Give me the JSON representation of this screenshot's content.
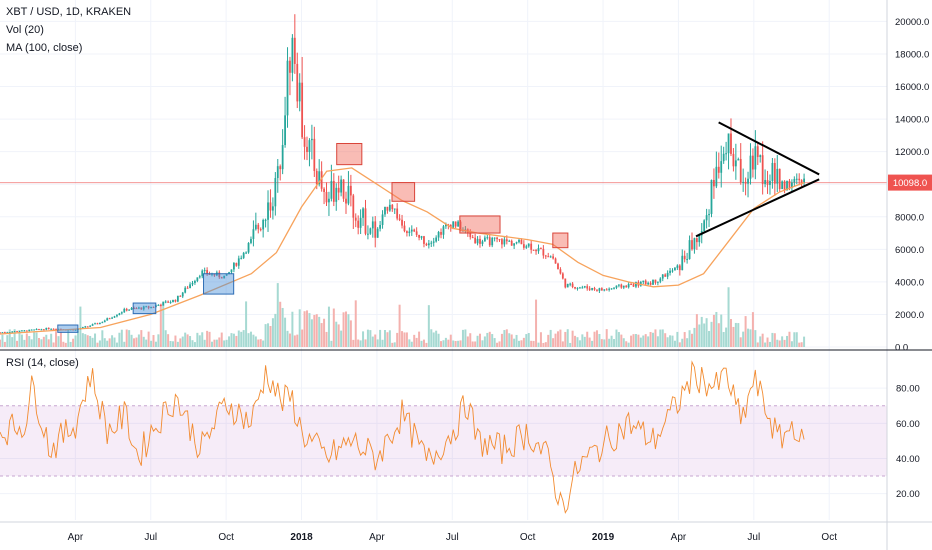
{
  "main_legend": {
    "symbol_line": "XBT / USD, 1D, KRAKEN",
    "volume_line": "Vol (20)",
    "ma_line": "MA (100, close)"
  },
  "rsi_legend": "RSI (14, close)",
  "current_price": {
    "label": "10098.0",
    "value": 10098,
    "color": "#ef5350"
  },
  "chart_data": [
    {
      "type": "candlestick",
      "title": "XBT / USD, 1D, KRAKEN",
      "ylim": [
        0,
        20700
      ],
      "y_ticks": [
        "0.0",
        "2000.0",
        "4000.0",
        "6000.0",
        "8000.0",
        "10000.0",
        "12000.0",
        "14000.0",
        "16000.0",
        "18000.0",
        "20000.0"
      ],
      "y_tick_values": [
        0,
        2000,
        4000,
        6000,
        8000,
        10000,
        12000,
        14000,
        16000,
        18000,
        20000
      ],
      "x_ticks": [
        {
          "label": "Apr",
          "month": 3,
          "bold": false
        },
        {
          "label": "Jul",
          "month": 6,
          "bold": false
        },
        {
          "label": "Oct",
          "month": 9,
          "bold": false
        },
        {
          "label": "2018",
          "month": 12,
          "bold": true
        },
        {
          "label": "Apr",
          "month": 15,
          "bold": false
        },
        {
          "label": "Jul",
          "month": 18,
          "bold": false
        },
        {
          "label": "Oct",
          "month": 21,
          "bold": false
        },
        {
          "label": "2019",
          "month": 24,
          "bold": true
        },
        {
          "label": "Apr",
          "month": 27,
          "bold": false
        },
        {
          "label": "Jul",
          "month": 30,
          "bold": false
        },
        {
          "label": "Oct",
          "month": 33,
          "bold": false
        }
      ],
      "x_range_months": [
        0,
        35.3
      ],
      "price_path": [
        [
          0,
          900
        ],
        [
          1,
          1000
        ],
        [
          2,
          1150
        ],
        [
          3,
          1050
        ],
        [
          4,
          1500
        ],
        [
          5,
          2300
        ],
        [
          6,
          2450
        ],
        [
          7,
          2900
        ],
        [
          8,
          4600
        ],
        [
          9,
          4300
        ],
        [
          10,
          6500
        ],
        [
          11,
          9800
        ],
        [
          11.6,
          19000
        ],
        [
          12,
          14000
        ],
        [
          12.5,
          11200
        ],
        [
          13,
          9000
        ],
        [
          13.5,
          10500
        ],
        [
          14,
          8500
        ],
        [
          15,
          7000
        ],
        [
          15.5,
          9000
        ],
        [
          16,
          7500
        ],
        [
          17,
          6400
        ],
        [
          18,
          7700
        ],
        [
          19,
          6500
        ],
        [
          20,
          6500
        ],
        [
          21,
          6300
        ],
        [
          22,
          5500
        ],
        [
          22.5,
          3800
        ],
        [
          23,
          3700
        ],
        [
          24,
          3500
        ],
        [
          25,
          3800
        ],
        [
          26,
          4000
        ],
        [
          27,
          4900
        ],
        [
          28,
          7500
        ],
        [
          28.8,
          12800
        ],
        [
          29.5,
          10500
        ],
        [
          30,
          11500
        ],
        [
          31,
          10000
        ],
        [
          32,
          10100
        ]
      ],
      "ma_path": [
        [
          0,
          800
        ],
        [
          4,
          1200
        ],
        [
          6,
          2000
        ],
        [
          8,
          3200
        ],
        [
          10,
          4500
        ],
        [
          11,
          5800
        ],
        [
          12,
          8600
        ],
        [
          13,
          10800
        ],
        [
          14,
          11000
        ],
        [
          15,
          10000
        ],
        [
          16,
          9000
        ],
        [
          17,
          8300
        ],
        [
          18,
          7300
        ],
        [
          19,
          7000
        ],
        [
          20,
          6800
        ],
        [
          21,
          6600
        ],
        [
          22,
          6300
        ],
        [
          23,
          5200
        ],
        [
          24,
          4400
        ],
        [
          25,
          4000
        ],
        [
          26,
          3700
        ],
        [
          27,
          3800
        ],
        [
          28,
          4500
        ],
        [
          29,
          6500
        ],
        [
          30,
          8500
        ],
        [
          31,
          9500
        ],
        [
          32,
          10100
        ]
      ],
      "boxes": [
        {
          "m0": 2.3,
          "m1": 3.1,
          "p0": 900,
          "p1": 1350,
          "color": "blue"
        },
        {
          "m0": 5.3,
          "m1": 6.2,
          "p0": 2050,
          "p1": 2700,
          "color": "blue"
        },
        {
          "m0": 8.1,
          "m1": 9.3,
          "p0": 3250,
          "p1": 4500,
          "color": "blue"
        },
        {
          "m0": 13.4,
          "m1": 14.4,
          "p0": 11200,
          "p1": 12500,
          "color": "red"
        },
        {
          "m0": 15.6,
          "m1": 16.5,
          "p0": 8950,
          "p1": 10100,
          "color": "red"
        },
        {
          "m0": 18.3,
          "m1": 19.9,
          "p0": 7000,
          "p1": 8050,
          "color": "red"
        },
        {
          "m0": 22.0,
          "m1": 22.6,
          "p0": 6100,
          "p1": 7000,
          "color": "red"
        }
      ],
      "trendlines": [
        {
          "m0": 28.6,
          "p0": 13800,
          "m1": 32.6,
          "p1": 10600
        },
        {
          "m0": 27.7,
          "p0": 6800,
          "m1": 32.6,
          "p1": 10300
        }
      ]
    },
    {
      "type": "bar",
      "title": "Vol (20)",
      "description": "volume histogram at the foot of the price pane"
    },
    {
      "type": "line",
      "title": "RSI (14, close)",
      "ylim": [
        5,
        100
      ],
      "y_ticks": [
        "20.00",
        "40.00",
        "60.00",
        "80.00"
      ],
      "y_tick_values": [
        20,
        40,
        60,
        80
      ],
      "band": [
        30,
        70
      ],
      "rsi_path": [
        [
          0,
          55
        ],
        [
          1,
          60
        ],
        [
          1.3,
          82
        ],
        [
          2,
          45
        ],
        [
          3,
          60
        ],
        [
          3.6,
          88
        ],
        [
          4.3,
          55
        ],
        [
          5,
          65
        ],
        [
          5.5,
          40
        ],
        [
          6,
          55
        ],
        [
          7,
          75
        ],
        [
          8,
          45
        ],
        [
          9,
          72
        ],
        [
          10,
          60
        ],
        [
          10.6,
          90
        ],
        [
          11.2,
          72
        ],
        [
          11.6,
          75
        ],
        [
          12,
          55
        ],
        [
          13,
          40
        ],
        [
          14,
          50
        ],
        [
          15,
          40
        ],
        [
          16,
          65
        ],
        [
          17,
          38
        ],
        [
          18,
          55
        ],
        [
          18.6,
          72
        ],
        [
          19,
          50
        ],
        [
          20,
          45
        ],
        [
          21,
          55
        ],
        [
          21.8,
          40
        ],
        [
          22.3,
          15
        ],
        [
          22.6,
          18
        ],
        [
          23,
          35
        ],
        [
          24,
          48
        ],
        [
          25,
          60
        ],
        [
          26,
          50
        ],
        [
          27,
          72
        ],
        [
          27.6,
          88
        ],
        [
          28.5,
          80
        ],
        [
          28.9,
          88
        ],
        [
          29.5,
          60
        ],
        [
          30,
          85
        ],
        [
          31,
          50
        ],
        [
          31.6,
          60
        ],
        [
          32,
          45
        ]
      ]
    }
  ]
}
